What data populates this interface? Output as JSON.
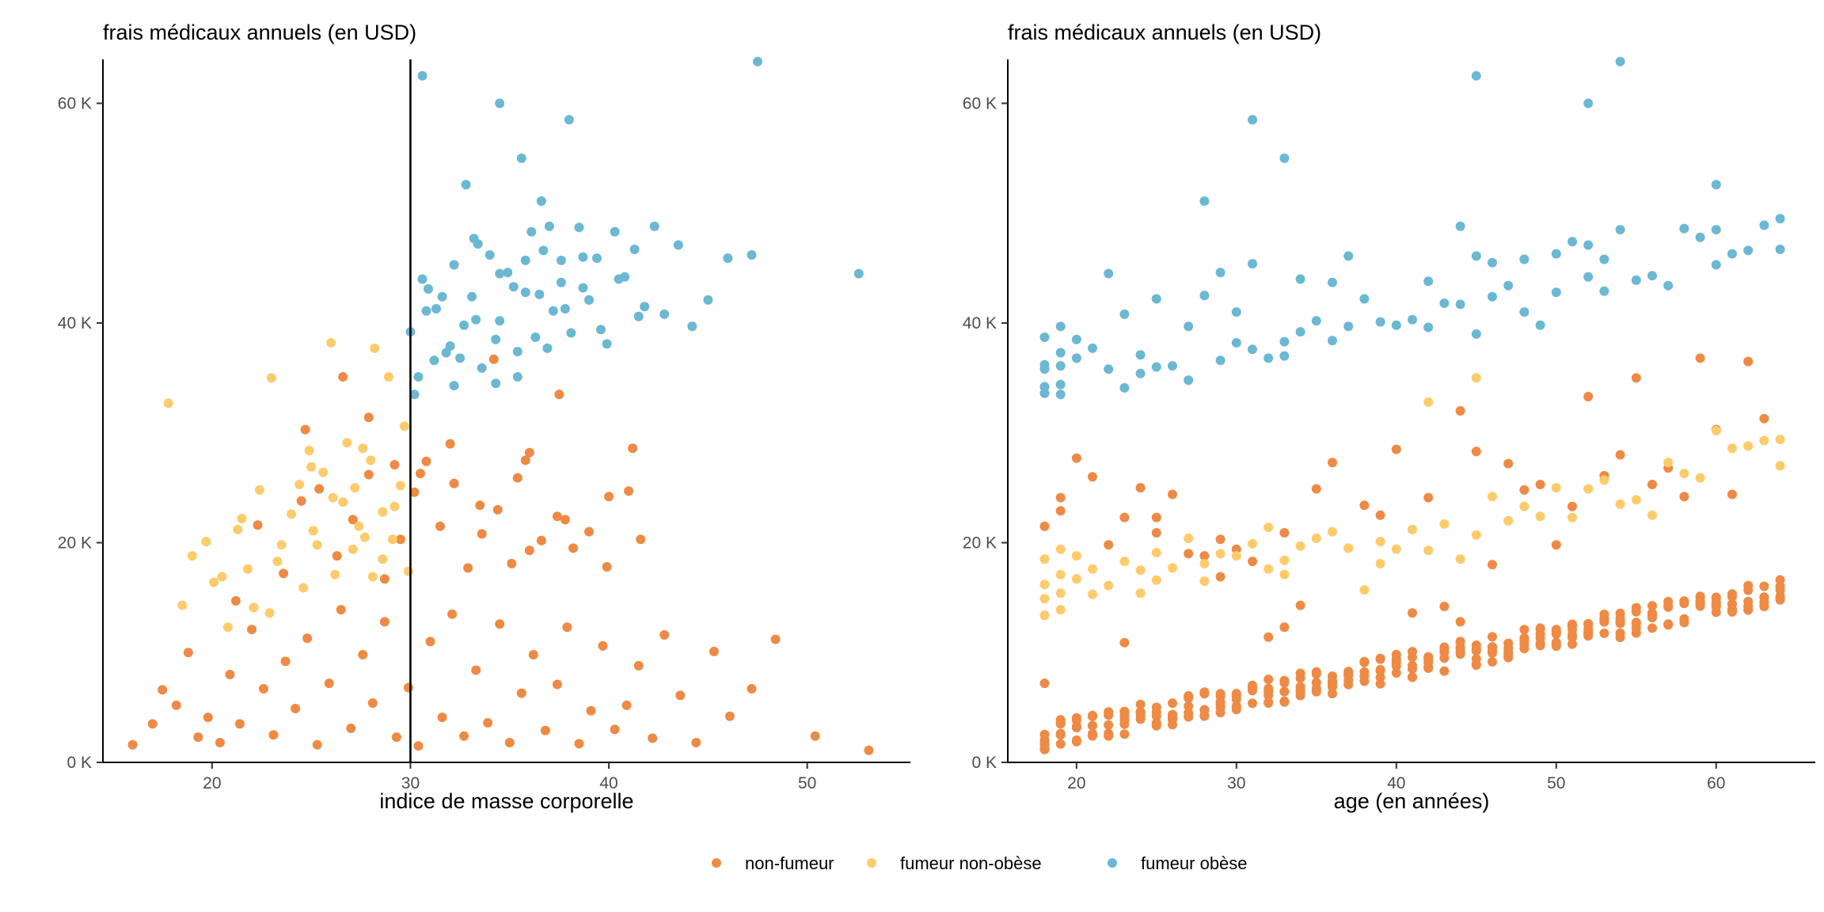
{
  "legend": [
    {
      "label": "non-fumeur",
      "color": "#EE8A44"
    },
    {
      "label": "fumeur non-obèse",
      "color": "#FCCB6B"
    },
    {
      "label": "fumeur obèse",
      "color": "#6BB8D2"
    }
  ],
  "chart_data": [
    {
      "type": "scatter",
      "title": "frais médicaux annuels (en USD)",
      "xlabel": "indice de masse corporelle",
      "ylabel": "",
      "xlim": [
        14.5,
        55.2
      ],
      "ylim": [
        0,
        64000
      ],
      "xticks": [
        {
          "value": 20,
          "label": "20"
        },
        {
          "value": 30,
          "label": "30"
        },
        {
          "value": 40,
          "label": "40"
        },
        {
          "value": 50,
          "label": "50"
        }
      ],
      "yticks": [
        {
          "value": 0,
          "label": "0 K"
        },
        {
          "value": 20000,
          "label": "20 K"
        },
        {
          "value": 40000,
          "label": "40 K"
        },
        {
          "value": 60000,
          "label": "60 K"
        }
      ],
      "reference_line": {
        "axis": "x",
        "value": 30
      },
      "grid": false,
      "series": [
        {
          "name": "non-fumeur",
          "color": "#EE8A44",
          "x": [
            16.0,
            17.0,
            17.5,
            18.2,
            18.8,
            19.3,
            19.8,
            20.4,
            20.9,
            21.4,
            22.0,
            22.6,
            23.1,
            23.7,
            24.2,
            24.8,
            25.3,
            25.9,
            26.5,
            27.0,
            27.6,
            28.1,
            28.7,
            29.3,
            29.9,
            30.4,
            31.0,
            31.6,
            32.1,
            32.7,
            33.3,
            33.9,
            34.5,
            35.0,
            35.6,
            36.2,
            36.8,
            37.4,
            37.9,
            38.5,
            39.1,
            39.7,
            40.3,
            40.9,
            41.5,
            42.2,
            42.8,
            43.6,
            44.4,
            45.3,
            46.1,
            47.2,
            48.4,
            50.4,
            53.1,
            21.2,
            22.3,
            23.6,
            24.5,
            25.4,
            26.3,
            27.1,
            27.9,
            28.7,
            29.5,
            30.2,
            30.8,
            31.5,
            32.2,
            32.9,
            33.6,
            34.4,
            35.1,
            35.8,
            36.6,
            37.4,
            38.2,
            39.0,
            39.9,
            41.0,
            26.6,
            30.5,
            32.0,
            34.2,
            36.0,
            37.5,
            41.2,
            24.7,
            27.9,
            29.2,
            33.5,
            35.4,
            40.0,
            36.0,
            37.8,
            41.6
          ],
          "y": [
            1600,
            3500,
            6600,
            5200,
            10000,
            2300,
            4100,
            1800,
            8000,
            3500,
            12100,
            6700,
            2500,
            9200,
            4900,
            11300,
            1600,
            7200,
            13900,
            3100,
            9800,
            5400,
            12800,
            2300,
            6800,
            1500,
            11000,
            4100,
            13500,
            2400,
            8400,
            3600,
            12600,
            1800,
            6300,
            9800,
            2900,
            7100,
            12300,
            1700,
            4700,
            10600,
            3000,
            5200,
            8800,
            2200,
            11600,
            6100,
            1800,
            10100,
            4200,
            6700,
            11200,
            2400,
            1100,
            14700,
            21600,
            17200,
            23800,
            24900,
            18800,
            22100,
            26200,
            16700,
            20300,
            24600,
            27400,
            21500,
            25400,
            17700,
            20800,
            23000,
            18100,
            27500,
            20200,
            22400,
            19500,
            21000,
            17800,
            24700,
            35100,
            26300,
            29000,
            36700,
            28200,
            33500,
            28600,
            30300,
            31400,
            27100,
            23400,
            25900,
            24200,
            19300,
            22100,
            20300
          ]
        },
        {
          "name": "fumeur non-obèse",
          "color": "#FCCB6B",
          "x": [
            17.8,
            18.5,
            19.0,
            19.7,
            20.1,
            20.8,
            21.3,
            21.8,
            22.4,
            22.9,
            23.5,
            24.0,
            24.6,
            25.1,
            25.6,
            26.2,
            26.6,
            27.1,
            27.6,
            28.1,
            28.6,
            29.1,
            29.5,
            29.9,
            22.1,
            23.3,
            24.4,
            25.3,
            26.1,
            26.8,
            27.4,
            28.0,
            28.6,
            29.2,
            29.7,
            20.5,
            23.0,
            25.0,
            26.0,
            27.2,
            28.2,
            28.9,
            21.5,
            24.9,
            27.7
          ],
          "y": [
            32700,
            14300,
            18800,
            20100,
            16400,
            12300,
            21200,
            17600,
            24800,
            13600,
            19800,
            22600,
            15900,
            21100,
            26400,
            17100,
            23700,
            19400,
            28600,
            16900,
            22800,
            20300,
            25200,
            17400,
            14100,
            18300,
            25300,
            19800,
            24100,
            29100,
            21500,
            27500,
            18500,
            23300,
            30600,
            16900,
            35000,
            26900,
            38200,
            25000,
            37700,
            35100,
            22200,
            28400,
            20500
          ]
        },
        {
          "name": "fumeur obèse",
          "color": "#6BB8D2",
          "x": [
            30.0,
            30.4,
            30.9,
            31.3,
            31.8,
            32.2,
            32.7,
            33.1,
            33.6,
            34.0,
            34.5,
            34.9,
            35.4,
            35.8,
            36.3,
            36.7,
            37.2,
            37.6,
            38.1,
            38.5,
            39.0,
            39.4,
            39.9,
            40.3,
            40.8,
            41.3,
            41.8,
            42.3,
            42.8,
            43.5,
            44.2,
            45.0,
            46.0,
            47.2,
            52.6,
            30.6,
            31.6,
            32.5,
            33.4,
            34.3,
            35.2,
            36.1,
            36.9,
            37.8,
            38.7,
            39.6,
            40.5,
            41.5,
            30.2,
            31.2,
            32.2,
            33.2,
            34.3,
            35.4,
            36.5,
            37.6,
            38.7,
            30.8,
            32.0,
            33.3,
            34.5,
            35.8,
            37.0,
            30.6,
            34.5,
            38.0,
            32.8,
            35.6,
            36.6,
            47.5
          ],
          "y": [
            39200,
            35100,
            43100,
            41300,
            37300,
            45300,
            39800,
            42400,
            35900,
            46200,
            40200,
            44600,
            37400,
            42800,
            38700,
            46600,
            41100,
            43700,
            39100,
            48700,
            42100,
            45900,
            38100,
            48300,
            44200,
            46700,
            41500,
            48800,
            40800,
            47100,
            39700,
            42100,
            45900,
            46200,
            44500,
            44000,
            42400,
            36800,
            47200,
            34500,
            43300,
            48300,
            37700,
            41300,
            46000,
            39400,
            44000,
            40600,
            33500,
            36600,
            34300,
            47700,
            38500,
            35100,
            42600,
            45700,
            43200,
            41100,
            37900,
            40300,
            44500,
            45700,
            48800,
            62500,
            60000,
            58500,
            52600,
            55000,
            51100,
            63800
          ]
        }
      ]
    },
    {
      "type": "scatter",
      "title": "frais médicaux annuels (en USD)",
      "xlabel": "age (en années)",
      "ylabel": "",
      "xlim": [
        15.7,
        66.2
      ],
      "ylim": [
        0,
        64000
      ],
      "xticks": [
        {
          "value": 20,
          "label": "20"
        },
        {
          "value": 30,
          "label": "30"
        },
        {
          "value": 40,
          "label": "40"
        },
        {
          "value": 50,
          "label": "50"
        },
        {
          "value": 60,
          "label": "60"
        }
      ],
      "yticks": [
        {
          "value": 0,
          "label": "0 K"
        },
        {
          "value": 20000,
          "label": "20 K"
        },
        {
          "value": 40000,
          "label": "40 K"
        },
        {
          "value": 60000,
          "label": "60 K"
        }
      ],
      "grid": false,
      "series": [
        {
          "name": "non-fumeur",
          "color": "#EE8A44",
          "age_band": {
            "age_min": 18,
            "age_max": 64,
            "base_at_18": 1100,
            "slope_per_year": 285,
            "spread": 2500,
            "points_per_age": 6
          },
          "x": [
            18,
            18,
            19,
            19,
            20,
            21,
            22,
            23,
            23,
            24,
            25,
            25,
            26,
            27,
            28,
            29,
            29,
            30,
            31,
            32,
            33,
            33,
            34,
            35,
            36,
            37,
            38,
            39,
            40,
            41,
            42,
            43,
            44,
            44,
            45,
            46,
            47,
            48,
            49,
            50,
            51,
            52,
            53,
            54,
            55,
            56,
            57,
            58,
            59,
            60,
            61,
            62,
            63
          ],
          "y": [
            7200,
            21500,
            24100,
            22900,
            27700,
            26000,
            19800,
            22300,
            10900,
            25000,
            20900,
            22300,
            24400,
            19000,
            18800,
            20300,
            16900,
            19400,
            18300,
            11400,
            12300,
            20900,
            14300,
            24900,
            27300,
            19500,
            23400,
            22500,
            28500,
            13600,
            24100,
            14200,
            12800,
            32000,
            28300,
            18000,
            27200,
            24800,
            25300,
            19800,
            23300,
            33300,
            26100,
            28000,
            35000,
            25300,
            26800,
            24200,
            36800,
            30300,
            24400,
            36500,
            31300
          ]
        },
        {
          "name": "fumeur non-obèse",
          "color": "#FCCB6B",
          "x": [
            18,
            18,
            18,
            18,
            19,
            19,
            19,
            19,
            20,
            20,
            21,
            21,
            22,
            23,
            24,
            24,
            25,
            25,
            26,
            27,
            28,
            28,
            29,
            30,
            31,
            32,
            32,
            33,
            33,
            34,
            35,
            36,
            37,
            38,
            39,
            39,
            40,
            41,
            42,
            42,
            43,
            44,
            45,
            45,
            46,
            47,
            48,
            49,
            50,
            51,
            52,
            53,
            54,
            55,
            56,
            57,
            58,
            59,
            60,
            61,
            62,
            63,
            64,
            64
          ],
          "y": [
            13400,
            16200,
            18500,
            14900,
            15400,
            17100,
            19400,
            13900,
            16700,
            18800,
            15300,
            17600,
            16100,
            18300,
            17500,
            15400,
            19100,
            16600,
            17700,
            20400,
            18100,
            16500,
            19000,
            18800,
            19900,
            17600,
            21400,
            18400,
            17100,
            19700,
            20400,
            21000,
            19500,
            15700,
            20100,
            18100,
            19400,
            21200,
            32800,
            19300,
            21700,
            18500,
            20700,
            35000,
            24200,
            22000,
            23300,
            22400,
            25000,
            22300,
            24900,
            25700,
            23500,
            23900,
            22500,
            27300,
            26300,
            25900,
            30200,
            28600,
            28800,
            29300,
            27000,
            29400
          ]
        },
        {
          "name": "fumeur obèse",
          "color": "#6BB8D2",
          "x": [
            18,
            18,
            18,
            18,
            18,
            19,
            19,
            19,
            19,
            19,
            20,
            20,
            21,
            22,
            22,
            23,
            23,
            24,
            24,
            25,
            25,
            26,
            27,
            27,
            28,
            29,
            29,
            30,
            30,
            31,
            31,
            32,
            33,
            33,
            34,
            34,
            35,
            36,
            36,
            37,
            37,
            38,
            39,
            40,
            41,
            42,
            42,
            43,
            44,
            44,
            45,
            45,
            46,
            46,
            47,
            48,
            48,
            49,
            50,
            50,
            51,
            52,
            52,
            53,
            53,
            54,
            55,
            56,
            57,
            58,
            59,
            60,
            60,
            61,
            62,
            63,
            64,
            64,
            31,
            33,
            28,
            45,
            54,
            52,
            60
          ],
          "y": [
            35800,
            33600,
            38700,
            36200,
            34200,
            36100,
            39700,
            34400,
            33500,
            37300,
            36800,
            38500,
            37700,
            35800,
            44500,
            34100,
            40800,
            37100,
            35400,
            42200,
            36000,
            36100,
            39700,
            34800,
            42500,
            36600,
            44600,
            38200,
            41000,
            37600,
            45400,
            36800,
            38300,
            37000,
            44000,
            39200,
            40200,
            38400,
            43700,
            39700,
            46100,
            42200,
            40100,
            39800,
            40300,
            43800,
            39600,
            41800,
            41700,
            48800,
            39000,
            46100,
            42400,
            45500,
            43400,
            45800,
            41000,
            39800,
            42800,
            46300,
            47400,
            44200,
            47100,
            42900,
            45800,
            48500,
            43900,
            44300,
            43400,
            48600,
            47800,
            48500,
            45300,
            46300,
            46600,
            48900,
            49500,
            46700,
            58500,
            55000,
            51100,
            62500,
            63800,
            60000,
            52600
          ]
        }
      ]
    }
  ]
}
